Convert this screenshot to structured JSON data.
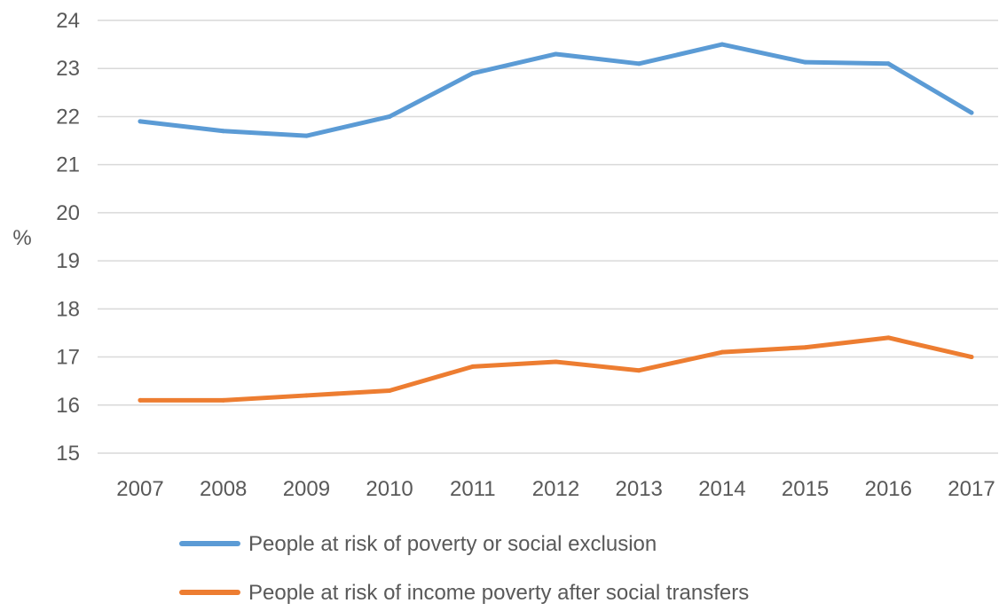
{
  "chart_data": {
    "type": "line",
    "categories": [
      "2007",
      "2008",
      "2009",
      "2010",
      "2011",
      "2012",
      "2013",
      "2014",
      "2015",
      "2016",
      "2017"
    ],
    "series": [
      {
        "name": "People at risk of poverty or social exclusion",
        "color": "#5B9BD5",
        "values": [
          21.9,
          21.7,
          21.6,
          22.0,
          22.9,
          23.3,
          23.1,
          23.5,
          23.13,
          23.1,
          22.08
        ]
      },
      {
        "name": "People at risk of income poverty after social transfers",
        "color": "#ED7D31",
        "values": [
          16.1,
          16.1,
          16.2,
          16.3,
          16.8,
          16.9,
          16.72,
          17.1,
          17.2,
          17.4,
          17.0
        ]
      }
    ],
    "ylabel": "%",
    "ylim": [
      15,
      24
    ],
    "yticks": [
      15,
      16,
      17,
      18,
      19,
      20,
      21,
      22,
      23,
      24
    ],
    "grid": true,
    "gridline_color": "#D9D9D9",
    "legend_placement": "bottom-left"
  }
}
